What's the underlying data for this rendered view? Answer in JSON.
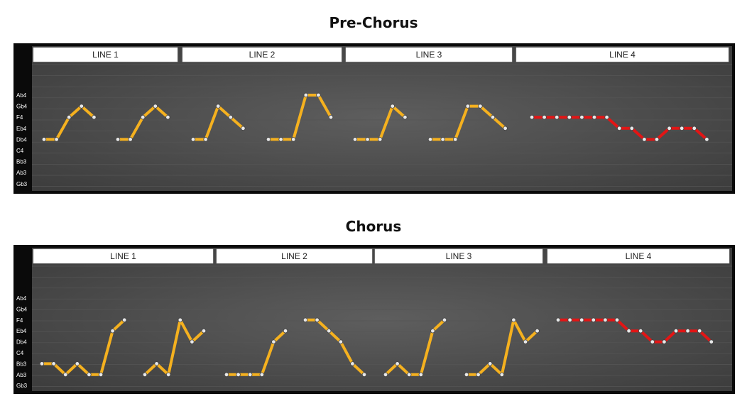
{
  "charts": [
    {
      "title": "Pre-Chorus",
      "chart_data": {
        "type": "line",
        "y_categories": [
          "Gb3",
          "Ab3",
          "Bb3",
          "C4",
          "Db4",
          "Eb4",
          "F4",
          "Gb4",
          "Ab4"
        ],
        "sections": [
          "LINE 1",
          "LINE 2",
          "LINE 3",
          "LINE 4"
        ],
        "colors": {
          "melody": "#f5b11f",
          "repeat": "#e31515",
          "background": "#3a3a3a",
          "frame": "#0a0a0a"
        },
        "phrases": [
          {
            "section": 0,
            "color": "melody",
            "notes": [
              "Db4",
              "Db4",
              "F4",
              "Gb4",
              "F4"
            ]
          },
          {
            "section": 0,
            "color": "melody",
            "notes": [
              "Db4",
              "Db4",
              "F4",
              "Gb4",
              "F4"
            ]
          },
          {
            "section": 1,
            "color": "melody",
            "notes": [
              "Db4",
              "Db4",
              "Gb4",
              "F4",
              "Eb4"
            ]
          },
          {
            "section": 1,
            "color": "melody",
            "notes": [
              "Db4",
              "Db4",
              "Db4",
              "Ab4",
              "Ab4",
              "F4"
            ]
          },
          {
            "section": 2,
            "color": "melody",
            "notes": [
              "Db4",
              "Db4",
              "Db4",
              "Gb4",
              "F4"
            ]
          },
          {
            "section": 2,
            "color": "melody",
            "notes": [
              "Db4",
              "Db4",
              "Db4",
              "Gb4",
              "Gb4",
              "F4",
              "Eb4"
            ]
          },
          {
            "section": 3,
            "color": "repeat",
            "notes": [
              "F4",
              "F4",
              "F4",
              "F4",
              "F4",
              "F4",
              "F4",
              "Eb4",
              "Eb4",
              "Db4",
              "Db4",
              "Eb4",
              "Eb4",
              "Eb4",
              "Db4"
            ]
          }
        ]
      }
    },
    {
      "title": "Chorus",
      "chart_data": {
        "type": "line",
        "y_categories": [
          "Gb3",
          "Ab3",
          "Bb3",
          "C4",
          "Db4",
          "Eb4",
          "F4",
          "Gb4",
          "Ab4"
        ],
        "sections": [
          "LINE 1",
          "LINE 2",
          "LINE 3",
          "LINE 4"
        ],
        "colors": {
          "melody": "#f5b11f",
          "repeat": "#e31515",
          "background": "#3a3a3a",
          "frame": "#0a0a0a"
        },
        "phrases": [
          {
            "section": 0,
            "color": "melody",
            "notes": [
              "Bb3",
              "Bb3",
              "Ab3",
              "Bb3",
              "Ab3",
              "Ab3",
              "Eb4",
              "F4"
            ]
          },
          {
            "section": 0,
            "color": "melody",
            "notes": [
              "Ab3",
              "Bb3",
              "Ab3",
              "F4",
              "Db4",
              "Eb4"
            ]
          },
          {
            "section": 1,
            "color": "melody",
            "notes": [
              "Ab3",
              "Ab3",
              "Ab3",
              "Ab3",
              "Db4",
              "Eb4"
            ]
          },
          {
            "section": 1,
            "color": "melody",
            "notes": [
              "F4",
              "F4",
              "Eb4",
              "Db4",
              "Bb3",
              "Ab3"
            ]
          },
          {
            "section": 2,
            "color": "melody",
            "notes": [
              "Ab3",
              "Bb3",
              "Ab3",
              "Ab3",
              "Eb4",
              "F4"
            ]
          },
          {
            "section": 2,
            "color": "melody",
            "notes": [
              "Ab3",
              "Ab3",
              "Bb3",
              "Ab3",
              "F4",
              "Db4",
              "Eb4"
            ]
          },
          {
            "section": 3,
            "color": "repeat",
            "notes": [
              "F4",
              "F4",
              "F4",
              "F4",
              "F4",
              "F4",
              "Eb4",
              "Eb4",
              "Db4",
              "Db4",
              "Eb4",
              "Eb4",
              "Eb4",
              "Db4"
            ]
          }
        ]
      }
    }
  ]
}
